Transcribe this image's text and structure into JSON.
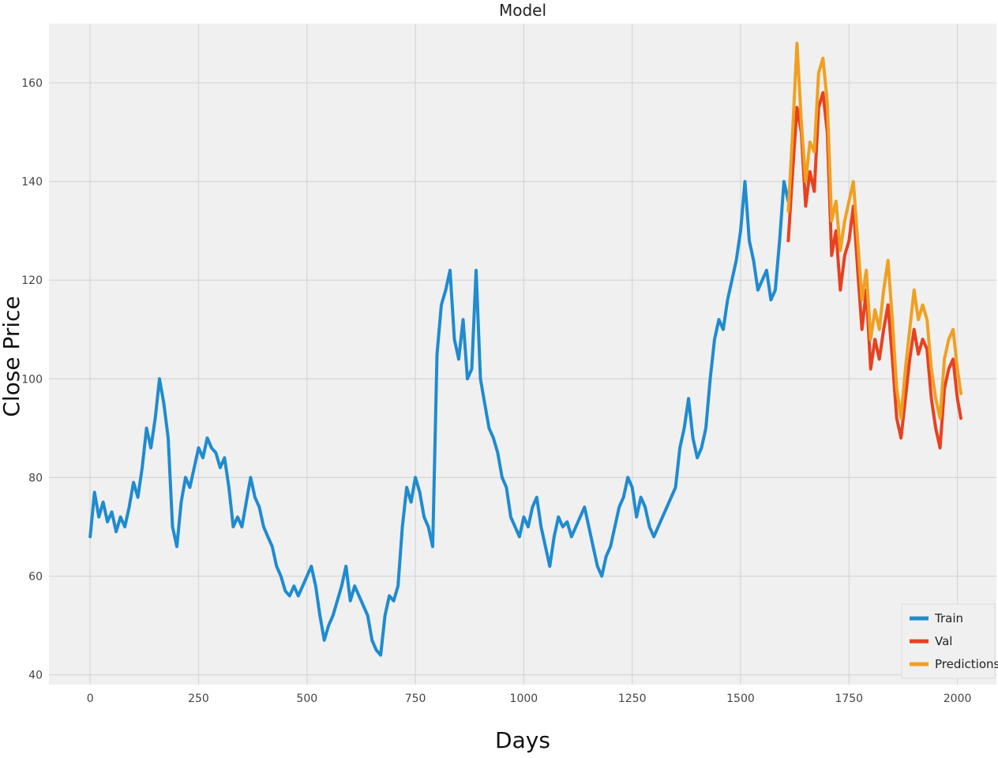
{
  "colors": {
    "background": "#f0f0f0",
    "grid": "#d6d6d6",
    "train": "#1f8bd0",
    "val": "#e8411f",
    "predictions": "#f0a020"
  },
  "chart_data": {
    "type": "line",
    "title": "Model",
    "xlabel": "Days",
    "ylabel": "Close Price",
    "xlim": [
      -95,
      2090
    ],
    "ylim": [
      38,
      172
    ],
    "xticks": [
      0,
      250,
      500,
      750,
      1000,
      1250,
      1500,
      1750,
      2000
    ],
    "yticks": [
      40,
      60,
      80,
      100,
      120,
      140,
      160
    ],
    "grid": true,
    "legend": {
      "position": "bottom-right",
      "entries": [
        "Train",
        "Val",
        "Predictions"
      ]
    },
    "series": [
      {
        "name": "Train",
        "x": [
          0,
          10,
          20,
          30,
          40,
          50,
          60,
          70,
          80,
          90,
          100,
          110,
          120,
          130,
          140,
          150,
          160,
          170,
          180,
          190,
          200,
          210,
          220,
          230,
          240,
          250,
          260,
          270,
          280,
          290,
          300,
          310,
          320,
          330,
          340,
          350,
          360,
          370,
          380,
          390,
          400,
          410,
          420,
          430,
          440,
          450,
          460,
          470,
          480,
          490,
          500,
          510,
          520,
          530,
          540,
          550,
          560,
          570,
          580,
          590,
          600,
          610,
          620,
          630,
          640,
          650,
          660,
          670,
          680,
          690,
          700,
          710,
          720,
          730,
          740,
          750,
          760,
          770,
          780,
          790,
          800,
          810,
          820,
          830,
          840,
          850,
          860,
          870,
          880,
          890,
          900,
          910,
          920,
          930,
          940,
          950,
          960,
          970,
          980,
          990,
          1000,
          1010,
          1020,
          1030,
          1040,
          1050,
          1060,
          1070,
          1080,
          1090,
          1100,
          1110,
          1120,
          1130,
          1140,
          1150,
          1160,
          1170,
          1180,
          1190,
          1200,
          1210,
          1220,
          1230,
          1240,
          1250,
          1260,
          1270,
          1280,
          1290,
          1300,
          1310,
          1320,
          1330,
          1340,
          1350,
          1360,
          1370,
          1380,
          1390,
          1400,
          1410,
          1420,
          1430,
          1440,
          1450,
          1460,
          1470,
          1480,
          1490,
          1500,
          1510,
          1520,
          1530,
          1540,
          1550,
          1560,
          1570,
          1580,
          1590,
          1600,
          1610
        ],
        "values": [
          68,
          77,
          72,
          75,
          71,
          73,
          69,
          72,
          70,
          74,
          79,
          76,
          82,
          90,
          86,
          92,
          100,
          95,
          88,
          70,
          66,
          75,
          80,
          78,
          82,
          86,
          84,
          88,
          86,
          85,
          82,
          84,
          78,
          70,
          72,
          70,
          75,
          80,
          76,
          74,
          70,
          68,
          66,
          62,
          60,
          57,
          56,
          58,
          56,
          58,
          60,
          62,
          58,
          52,
          47,
          50,
          52,
          55,
          58,
          62,
          55,
          58,
          56,
          54,
          52,
          47,
          45,
          44,
          52,
          56,
          55,
          58,
          70,
          78,
          75,
          80,
          77,
          72,
          70,
          66,
          105,
          115,
          118,
          122,
          108,
          104,
          112,
          100,
          102,
          122,
          100,
          95,
          90,
          88,
          85,
          80,
          78,
          72,
          70,
          68,
          72,
          70,
          74,
          76,
          70,
          66,
          62,
          68,
          72,
          70,
          71,
          68,
          70,
          72,
          74,
          70,
          66,
          62,
          60,
          64,
          66,
          70,
          74,
          76,
          80,
          78,
          72,
          76,
          74,
          70,
          68,
          70,
          72,
          74,
          76,
          78,
          86,
          90,
          96,
          88,
          84,
          86,
          90,
          100,
          108,
          112,
          110,
          116,
          120,
          124,
          130,
          140,
          128,
          124,
          118,
          120,
          122,
          116,
          118,
          128,
          140,
          136
        ]
      },
      {
        "name": "Val",
        "x": [
          1610,
          1620,
          1630,
          1640,
          1650,
          1660,
          1670,
          1680,
          1690,
          1700,
          1710,
          1720,
          1730,
          1740,
          1750,
          1760,
          1770,
          1780,
          1790,
          1800,
          1810,
          1820,
          1830,
          1840,
          1850,
          1860,
          1870,
          1880,
          1890,
          1900,
          1910,
          1920,
          1930,
          1940,
          1950,
          1960,
          1970,
          1980,
          1990,
          2000,
          2008
        ],
        "values": [
          128,
          142,
          155,
          150,
          135,
          142,
          138,
          155,
          158,
          150,
          125,
          130,
          118,
          125,
          128,
          135,
          122,
          110,
          118,
          102,
          108,
          104,
          110,
          115,
          104,
          92,
          88,
          96,
          104,
          110,
          105,
          108,
          106,
          96,
          90,
          86,
          98,
          102,
          104,
          96,
          92
        ]
      },
      {
        "name": "Predictions",
        "x": [
          1610,
          1620,
          1630,
          1640,
          1650,
          1660,
          1670,
          1680,
          1690,
          1700,
          1710,
          1720,
          1730,
          1740,
          1750,
          1760,
          1770,
          1780,
          1790,
          1800,
          1810,
          1820,
          1830,
          1840,
          1850,
          1860,
          1870,
          1880,
          1890,
          1900,
          1910,
          1920,
          1930,
          1940,
          1950,
          1960,
          1970,
          1980,
          1990,
          2000,
          2008
        ],
        "values": [
          134,
          150,
          168,
          152,
          140,
          148,
          146,
          162,
          165,
          156,
          132,
          136,
          126,
          132,
          136,
          140,
          128,
          116,
          122,
          108,
          114,
          110,
          118,
          124,
          112,
          98,
          92,
          102,
          110,
          118,
          112,
          115,
          112,
          102,
          96,
          92,
          104,
          108,
          110,
          102,
          97
        ]
      }
    ]
  }
}
